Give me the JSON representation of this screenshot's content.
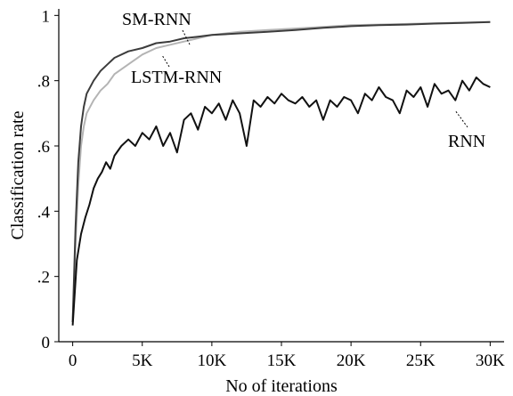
{
  "chart_data": {
    "type": "line",
    "title": "",
    "xlabel": "No of iterations",
    "ylabel": "Classification rate",
    "xlim": [
      -1000,
      31000
    ],
    "ylim": [
      0,
      1.02
    ],
    "x_ticks": [
      0,
      5000,
      10000,
      15000,
      20000,
      25000,
      30000
    ],
    "x_tick_labels": [
      "0",
      "5K",
      "10K",
      "15K",
      "20K",
      "25K",
      "30K"
    ],
    "y_ticks": [
      0,
      0.2,
      0.4,
      0.6,
      0.8,
      1.0
    ],
    "y_tick_labels": [
      "0",
      ".2",
      ".4",
      ".6",
      ".8",
      "1"
    ],
    "grid": false,
    "legend": "inline labels",
    "series": [
      {
        "name": "LSTM-RNN",
        "color": "#b4b4b4",
        "x": [
          0,
          200,
          400,
          600,
          800,
          1000,
          1500,
          2000,
          2500,
          3000,
          4000,
          5000,
          6000,
          7000,
          8000,
          9000,
          10000,
          12000,
          14000,
          16000,
          18000,
          20000,
          22000,
          24000,
          26000,
          28000,
          30000
        ],
        "y": [
          0.06,
          0.3,
          0.48,
          0.6,
          0.66,
          0.7,
          0.74,
          0.77,
          0.79,
          0.82,
          0.85,
          0.88,
          0.9,
          0.91,
          0.92,
          0.93,
          0.94,
          0.95,
          0.955,
          0.96,
          0.965,
          0.97,
          0.972,
          0.974,
          0.976,
          0.978,
          0.98
        ]
      },
      {
        "name": "SM-RNN",
        "color": "#3c3c3c",
        "x": [
          0,
          200,
          400,
          600,
          800,
          1000,
          1500,
          2000,
          2500,
          3000,
          4000,
          5000,
          6000,
          7000,
          8000,
          9000,
          10000,
          12000,
          14000,
          16000,
          18000,
          20000,
          22000,
          24000,
          26000,
          28000,
          30000
        ],
        "y": [
          0.06,
          0.35,
          0.55,
          0.66,
          0.72,
          0.76,
          0.8,
          0.83,
          0.85,
          0.87,
          0.89,
          0.9,
          0.915,
          0.92,
          0.93,
          0.935,
          0.94,
          0.945,
          0.95,
          0.955,
          0.962,
          0.967,
          0.97,
          0.972,
          0.975,
          0.977,
          0.98
        ]
      },
      {
        "name": "RNN",
        "color": "#111111",
        "x": [
          0,
          300,
          600,
          900,
          1200,
          1500,
          1800,
          2100,
          2400,
          2700,
          3000,
          3500,
          4000,
          4500,
          5000,
          5500,
          6000,
          6500,
          7000,
          7500,
          8000,
          8500,
          9000,
          9500,
          10000,
          10500,
          11000,
          11500,
          12000,
          12500,
          13000,
          13500,
          14000,
          14500,
          15000,
          15500,
          16000,
          16500,
          17000,
          17500,
          18000,
          18500,
          19000,
          19500,
          20000,
          20500,
          21000,
          21500,
          22000,
          22500,
          23000,
          23500,
          24000,
          24500,
          25000,
          25500,
          26000,
          26500,
          27000,
          27500,
          28000,
          28500,
          29000,
          29500,
          30000
        ],
        "y": [
          0.05,
          0.25,
          0.33,
          0.38,
          0.42,
          0.47,
          0.5,
          0.52,
          0.55,
          0.53,
          0.57,
          0.6,
          0.62,
          0.6,
          0.64,
          0.62,
          0.66,
          0.6,
          0.64,
          0.58,
          0.68,
          0.7,
          0.65,
          0.72,
          0.7,
          0.73,
          0.68,
          0.74,
          0.7,
          0.6,
          0.74,
          0.72,
          0.75,
          0.73,
          0.76,
          0.74,
          0.73,
          0.75,
          0.72,
          0.74,
          0.68,
          0.74,
          0.72,
          0.75,
          0.74,
          0.7,
          0.76,
          0.74,
          0.78,
          0.75,
          0.74,
          0.7,
          0.77,
          0.75,
          0.78,
          0.72,
          0.79,
          0.76,
          0.77,
          0.74,
          0.8,
          0.77,
          0.81,
          0.79,
          0.78
        ]
      }
    ],
    "annotations": [
      {
        "text": "SM-RNN"
      },
      {
        "text": "LSTM-RNN"
      },
      {
        "text": "RNN"
      }
    ]
  }
}
